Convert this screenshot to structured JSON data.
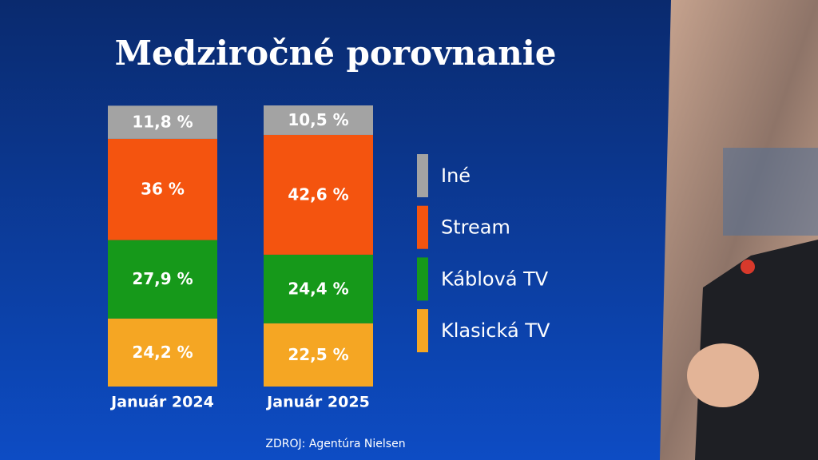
{
  "chart_data": {
    "type": "stacked_bar",
    "title": "Medziročné porovnanie",
    "categories": [
      "Január 2024",
      "Január 2025"
    ],
    "series": [
      {
        "name": "Klasická TV",
        "color": "#f5a623",
        "values": [
          24.2,
          22.5
        ],
        "value_labels": [
          "24,2 %",
          "22,5 %"
        ]
      },
      {
        "name": "Káblová TV",
        "color": "#16991a",
        "values": [
          27.9,
          24.4
        ],
        "value_labels": [
          "27,9 %",
          "24,4 %"
        ]
      },
      {
        "name": "Stream",
        "color": "#f4540f",
        "values": [
          36,
          42.6
        ],
        "value_labels": [
          "36 %",
          "42,6 %"
        ]
      },
      {
        "name": "Iné",
        "color": "#a3a3a3",
        "values": [
          11.8,
          10.5
        ],
        "value_labels": [
          "11,8 %",
          "10,5 %"
        ]
      }
    ],
    "ylim": [
      0,
      100
    ],
    "source": "ZDROJ: Agentúra Nielsen"
  }
}
